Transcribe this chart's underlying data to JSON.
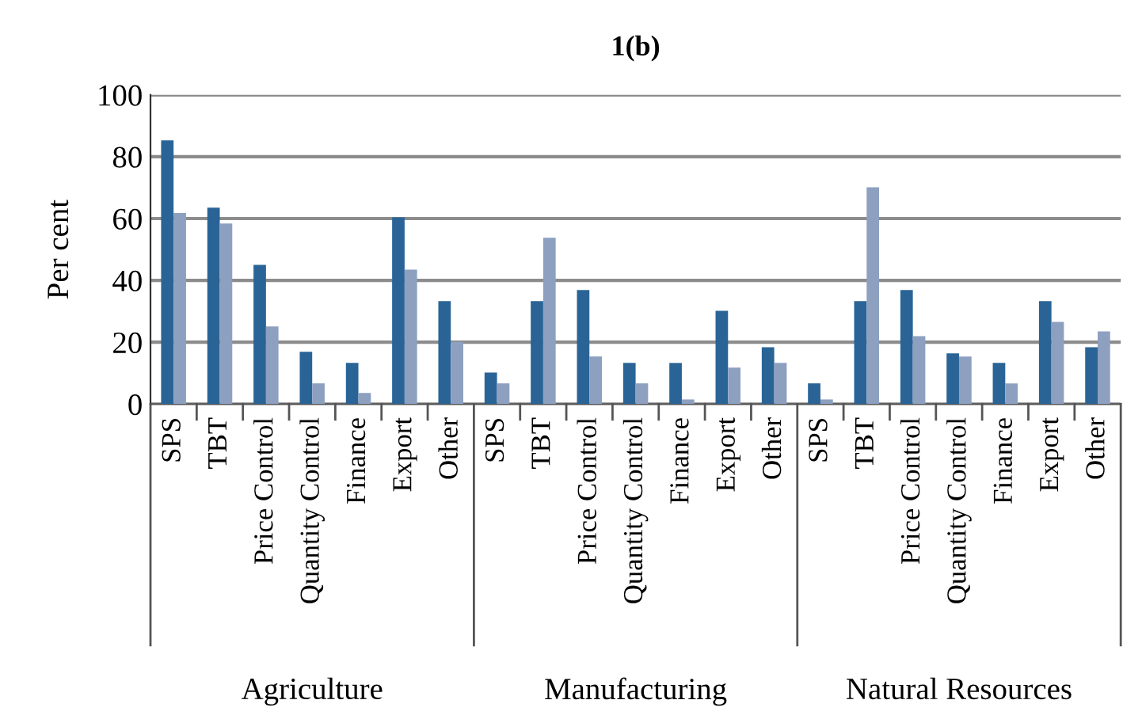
{
  "chart_data": {
    "type": "bar",
    "title": "1(b)",
    "ylabel": "Per cent",
    "categories": [
      "SPS",
      "TBT",
      "Price Control",
      "Quantity Control",
      "Finance",
      "Export",
      "Other",
      "SPS",
      "TBT",
      "Price Control",
      "Quantity Control",
      "Finance",
      "Export",
      "Other",
      "SPS",
      "TBT",
      "Price Control",
      "Quantity Control",
      "Finance",
      "Export",
      "Other"
    ],
    "series": [
      {
        "color": "#2a6496",
        "values": [
          85.3,
          63.5,
          45,
          16.9,
          13.3,
          60.4,
          33.3,
          10.2,
          33.3,
          36.9,
          13.3,
          13.3,
          30.2,
          18.4,
          6.7,
          33.3,
          36.9,
          16.4,
          13.3,
          33.3,
          18.4
        ]
      },
      {
        "color": "#8da0c0",
        "values": [
          61.8,
          58.4,
          25.1,
          6.7,
          3.6,
          43.5,
          20.1,
          6.7,
          53.8,
          15.4,
          6.7,
          1.5,
          11.8,
          13.3,
          1.5,
          70.1,
          22,
          15.4,
          6.7,
          26.6,
          23.5
        ]
      }
    ],
    "annotations": [
      "Agriculture",
      "Manufacturing",
      "Natural Resources"
    ],
    "ylim": [
      0,
      100
    ],
    "yticks": [
      0,
      20,
      40,
      60,
      80,
      100
    ],
    "grid": "y"
  }
}
